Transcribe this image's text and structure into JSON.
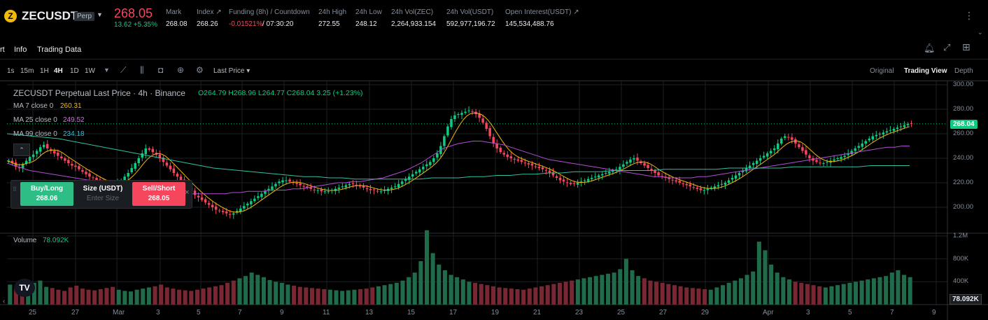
{
  "header": {
    "symbol": "ZECUSDT",
    "contract_badge": "Perp",
    "last_price": "268.05",
    "change": "13.62 +5.35%",
    "stats": [
      {
        "label": "Mark",
        "value": "268.08"
      },
      {
        "label": "Index ↗",
        "value": "268.26"
      },
      {
        "label": "Funding (8h) / Countdown",
        "value": "-0.01521%",
        "value2": " / 07:30:20"
      },
      {
        "label": "24h High",
        "value": "272.55"
      },
      {
        "label": "24h Low",
        "value": "248.12"
      },
      {
        "label": "24h Vol(ZEC)",
        "value": "2,264,933.154"
      },
      {
        "label": "24h Vol(USDT)",
        "value": "592,977,196.72"
      },
      {
        "label": "Open Interest(USDT) ↗",
        "value": "145,534,488.76"
      }
    ]
  },
  "tabs": [
    "rt",
    "Info",
    "Trading Data"
  ],
  "toolbar": {
    "intervals": [
      "1s",
      "15m",
      "1H",
      "4H",
      "1D",
      "1W"
    ],
    "active_interval": "4H",
    "price_type": "Last Price",
    "views": [
      "Original",
      "Trading View",
      "Depth"
    ],
    "active_view": "Trading View"
  },
  "legend": {
    "title": "ZECUSDT Perpetual Last Price · 4h · Binance",
    "ohlc": "O264.79 H268.96 L264.77 C268.04 3.25 (+1.23%)",
    "ma7_label": "MA 7 close 0",
    "ma7_value": "260.31",
    "ma25_label": "MA 25 close 0",
    "ma25_value": "249.52",
    "ma99_label": "MA 99 close 0",
    "ma99_value": "234.18",
    "volume_label": "Volume",
    "volume_value": "78.092K"
  },
  "trade": {
    "buy_label": "Buy/Long",
    "buy_price": "268.06",
    "size_label": "Size (USDT)",
    "size_placeholder": "Enter Size",
    "sell_label": "Sell/Short",
    "sell_price": "268.05",
    "close": "×"
  },
  "axes": {
    "price_ticks": [
      "300.00",
      "280.00",
      "260.00",
      "240.00",
      "220.00",
      "200.00"
    ],
    "price_tick_values": [
      300,
      280,
      260,
      240,
      220,
      200
    ],
    "current_price_badge": "268.04",
    "volume_ticks": [
      "1.2M",
      "800K",
      "400K"
    ],
    "volume_tick_values": [
      1200000,
      800000,
      400000
    ],
    "volume_badge": "78.092K",
    "date_labels": [
      "25",
      "27",
      "Mar",
      "3",
      "5",
      "7",
      "9",
      "11",
      "13",
      "15",
      "17",
      "19",
      "21",
      "23",
      "25",
      "27",
      "29",
      "Apr",
      "3",
      "5",
      "7",
      "9"
    ]
  },
  "colors": {
    "up": "#0ecb81",
    "down": "#f6465d",
    "vol_up": "#1f6b4a",
    "vol_down": "#7a2734",
    "ma7": "#f0b90b",
    "ma25": "#b34dd6",
    "ma99": "#2fc2a4",
    "grid": "#1b1f25"
  },
  "chart_data": {
    "type": "candlestick",
    "ylim": [
      190,
      302
    ],
    "close_series": [
      238,
      236,
      233,
      232,
      235,
      238,
      241,
      243,
      246,
      249,
      251,
      248,
      246,
      244,
      242,
      240,
      238,
      236,
      234,
      233,
      231,
      229,
      227,
      225,
      224,
      222,
      221,
      220,
      219,
      218,
      218,
      220,
      222,
      225,
      228,
      232,
      236,
      240,
      244,
      248,
      247,
      245,
      243,
      240,
      237,
      234,
      231,
      228,
      225,
      222,
      219,
      216,
      213,
      210,
      208,
      206,
      204,
      202,
      200,
      198,
      197,
      196,
      195,
      194,
      195,
      197,
      199,
      201,
      203,
      205,
      207,
      209,
      211,
      213,
      215,
      217,
      219,
      221,
      222,
      222,
      221,
      220,
      219,
      218,
      217,
      216,
      215,
      214,
      214,
      213,
      213,
      213,
      214,
      215,
      216,
      217,
      218,
      219,
      219,
      218,
      217,
      216,
      215,
      214,
      214,
      213,
      213,
      214,
      215,
      216,
      217,
      219,
      221,
      223,
      225,
      227,
      229,
      231,
      233,
      235,
      237,
      240,
      244,
      250,
      258,
      266,
      272,
      275,
      276,
      277,
      278,
      279,
      278,
      276,
      273,
      269,
      264,
      258,
      252,
      248,
      245,
      243,
      241,
      240,
      239,
      238,
      237,
      236,
      235,
      234,
      233,
      232,
      231,
      230,
      228,
      226,
      224,
      222,
      221,
      220,
      219,
      219,
      220,
      221,
      222,
      223,
      224,
      225,
      226,
      227,
      228,
      229,
      230,
      231,
      233,
      235,
      237,
      239,
      240,
      238,
      236,
      234,
      232,
      230,
      228,
      226,
      225,
      224,
      223,
      222,
      221,
      220,
      219,
      218,
      217,
      216,
      215,
      214,
      214,
      215,
      216,
      217,
      218,
      219,
      220,
      222,
      224,
      226,
      228,
      230,
      232,
      234,
      236,
      238,
      240,
      242,
      244,
      246,
      248,
      252,
      256,
      258,
      257,
      255,
      252,
      249,
      246,
      243,
      240,
      238,
      237,
      236,
      236,
      237,
      238,
      239,
      240,
      241,
      242,
      244,
      246,
      248,
      250,
      252,
      254,
      256,
      258,
      259,
      260,
      261,
      262,
      263,
      264,
      265,
      266,
      267,
      268,
      268
    ],
    "ma25_series": [
      236,
      234,
      232,
      230,
      229,
      228,
      227,
      226,
      225,
      224,
      223,
      222,
      221,
      220,
      219,
      218,
      217,
      216,
      215,
      214,
      213,
      212,
      212,
      211,
      211,
      211,
      211,
      211,
      211,
      211,
      212,
      212,
      213,
      213,
      213,
      214,
      214,
      214,
      215,
      215,
      216,
      217,
      218,
      219,
      220,
      220,
      221,
      221,
      222,
      223,
      224,
      226,
      228,
      230,
      233,
      236,
      240,
      244,
      248,
      250,
      252,
      253,
      254,
      254,
      253,
      252,
      251,
      249,
      247,
      245,
      243,
      241,
      239,
      238,
      237,
      236,
      235,
      234,
      233,
      232,
      231,
      230,
      229,
      228,
      227,
      226,
      225,
      225,
      224,
      224,
      224,
      224,
      225,
      225,
      226,
      227,
      228,
      229,
      230,
      231,
      232,
      233,
      234,
      235,
      236,
      237,
      238,
      239,
      240,
      241,
      242,
      243,
      244,
      245,
      246,
      247,
      248,
      249,
      249,
      250,
      250
    ],
    "ma99_series": [
      260,
      259,
      258,
      257,
      256,
      254,
      252,
      250,
      248,
      246,
      244,
      242,
      240,
      238,
      236,
      234,
      232,
      231,
      230,
      229,
      228,
      227,
      226,
      225,
      225,
      224,
      224,
      223,
      223,
      223,
      223,
      223,
      223,
      224,
      224,
      224,
      225,
      225,
      226,
      226,
      227,
      227,
      228,
      228,
      229,
      229,
      229,
      230,
      230,
      230,
      230,
      231,
      231,
      231,
      231,
      231,
      232,
      232,
      232,
      232,
      232,
      233,
      233,
      233,
      233,
      233,
      233,
      234,
      234,
      234,
      234
    ],
    "volume_series": [
      350,
      280,
      300,
      260,
      380,
      420,
      310,
      290,
      260,
      240,
      300,
      330,
      280,
      260,
      250,
      270,
      290,
      310,
      260,
      240,
      230,
      260,
      280,
      300,
      320,
      350,
      300,
      280,
      260,
      250,
      240,
      260,
      280,
      300,
      320,
      340,
      380,
      420,
      460,
      500,
      560,
      520,
      480,
      430,
      400,
      380,
      350,
      330,
      310,
      300,
      290,
      280,
      270,
      260,
      250,
      240,
      250,
      260,
      270,
      280,
      300,
      320,
      340,
      360,
      380,
      420,
      480,
      560,
      760,
      1300,
      900,
      700,
      600,
      520,
      480,
      440,
      400,
      380,
      360,
      340,
      320,
      300,
      290,
      280,
      270,
      260,
      280,
      300,
      320,
      340,
      360,
      380,
      400,
      420,
      440,
      460,
      480,
      500,
      520,
      540,
      560,
      620,
      800,
      600,
      500,
      460,
      420,
      400,
      380,
      360,
      340,
      320,
      300,
      290,
      280,
      270,
      260,
      300,
      340,
      380,
      420,
      460,
      520,
      580,
      1100,
      950,
      700,
      560,
      480,
      440,
      400,
      380,
      360,
      340,
      320,
      300,
      320,
      340,
      360,
      380,
      400,
      420,
      440,
      460,
      480,
      500,
      560,
      600,
      520,
      480
    ]
  }
}
